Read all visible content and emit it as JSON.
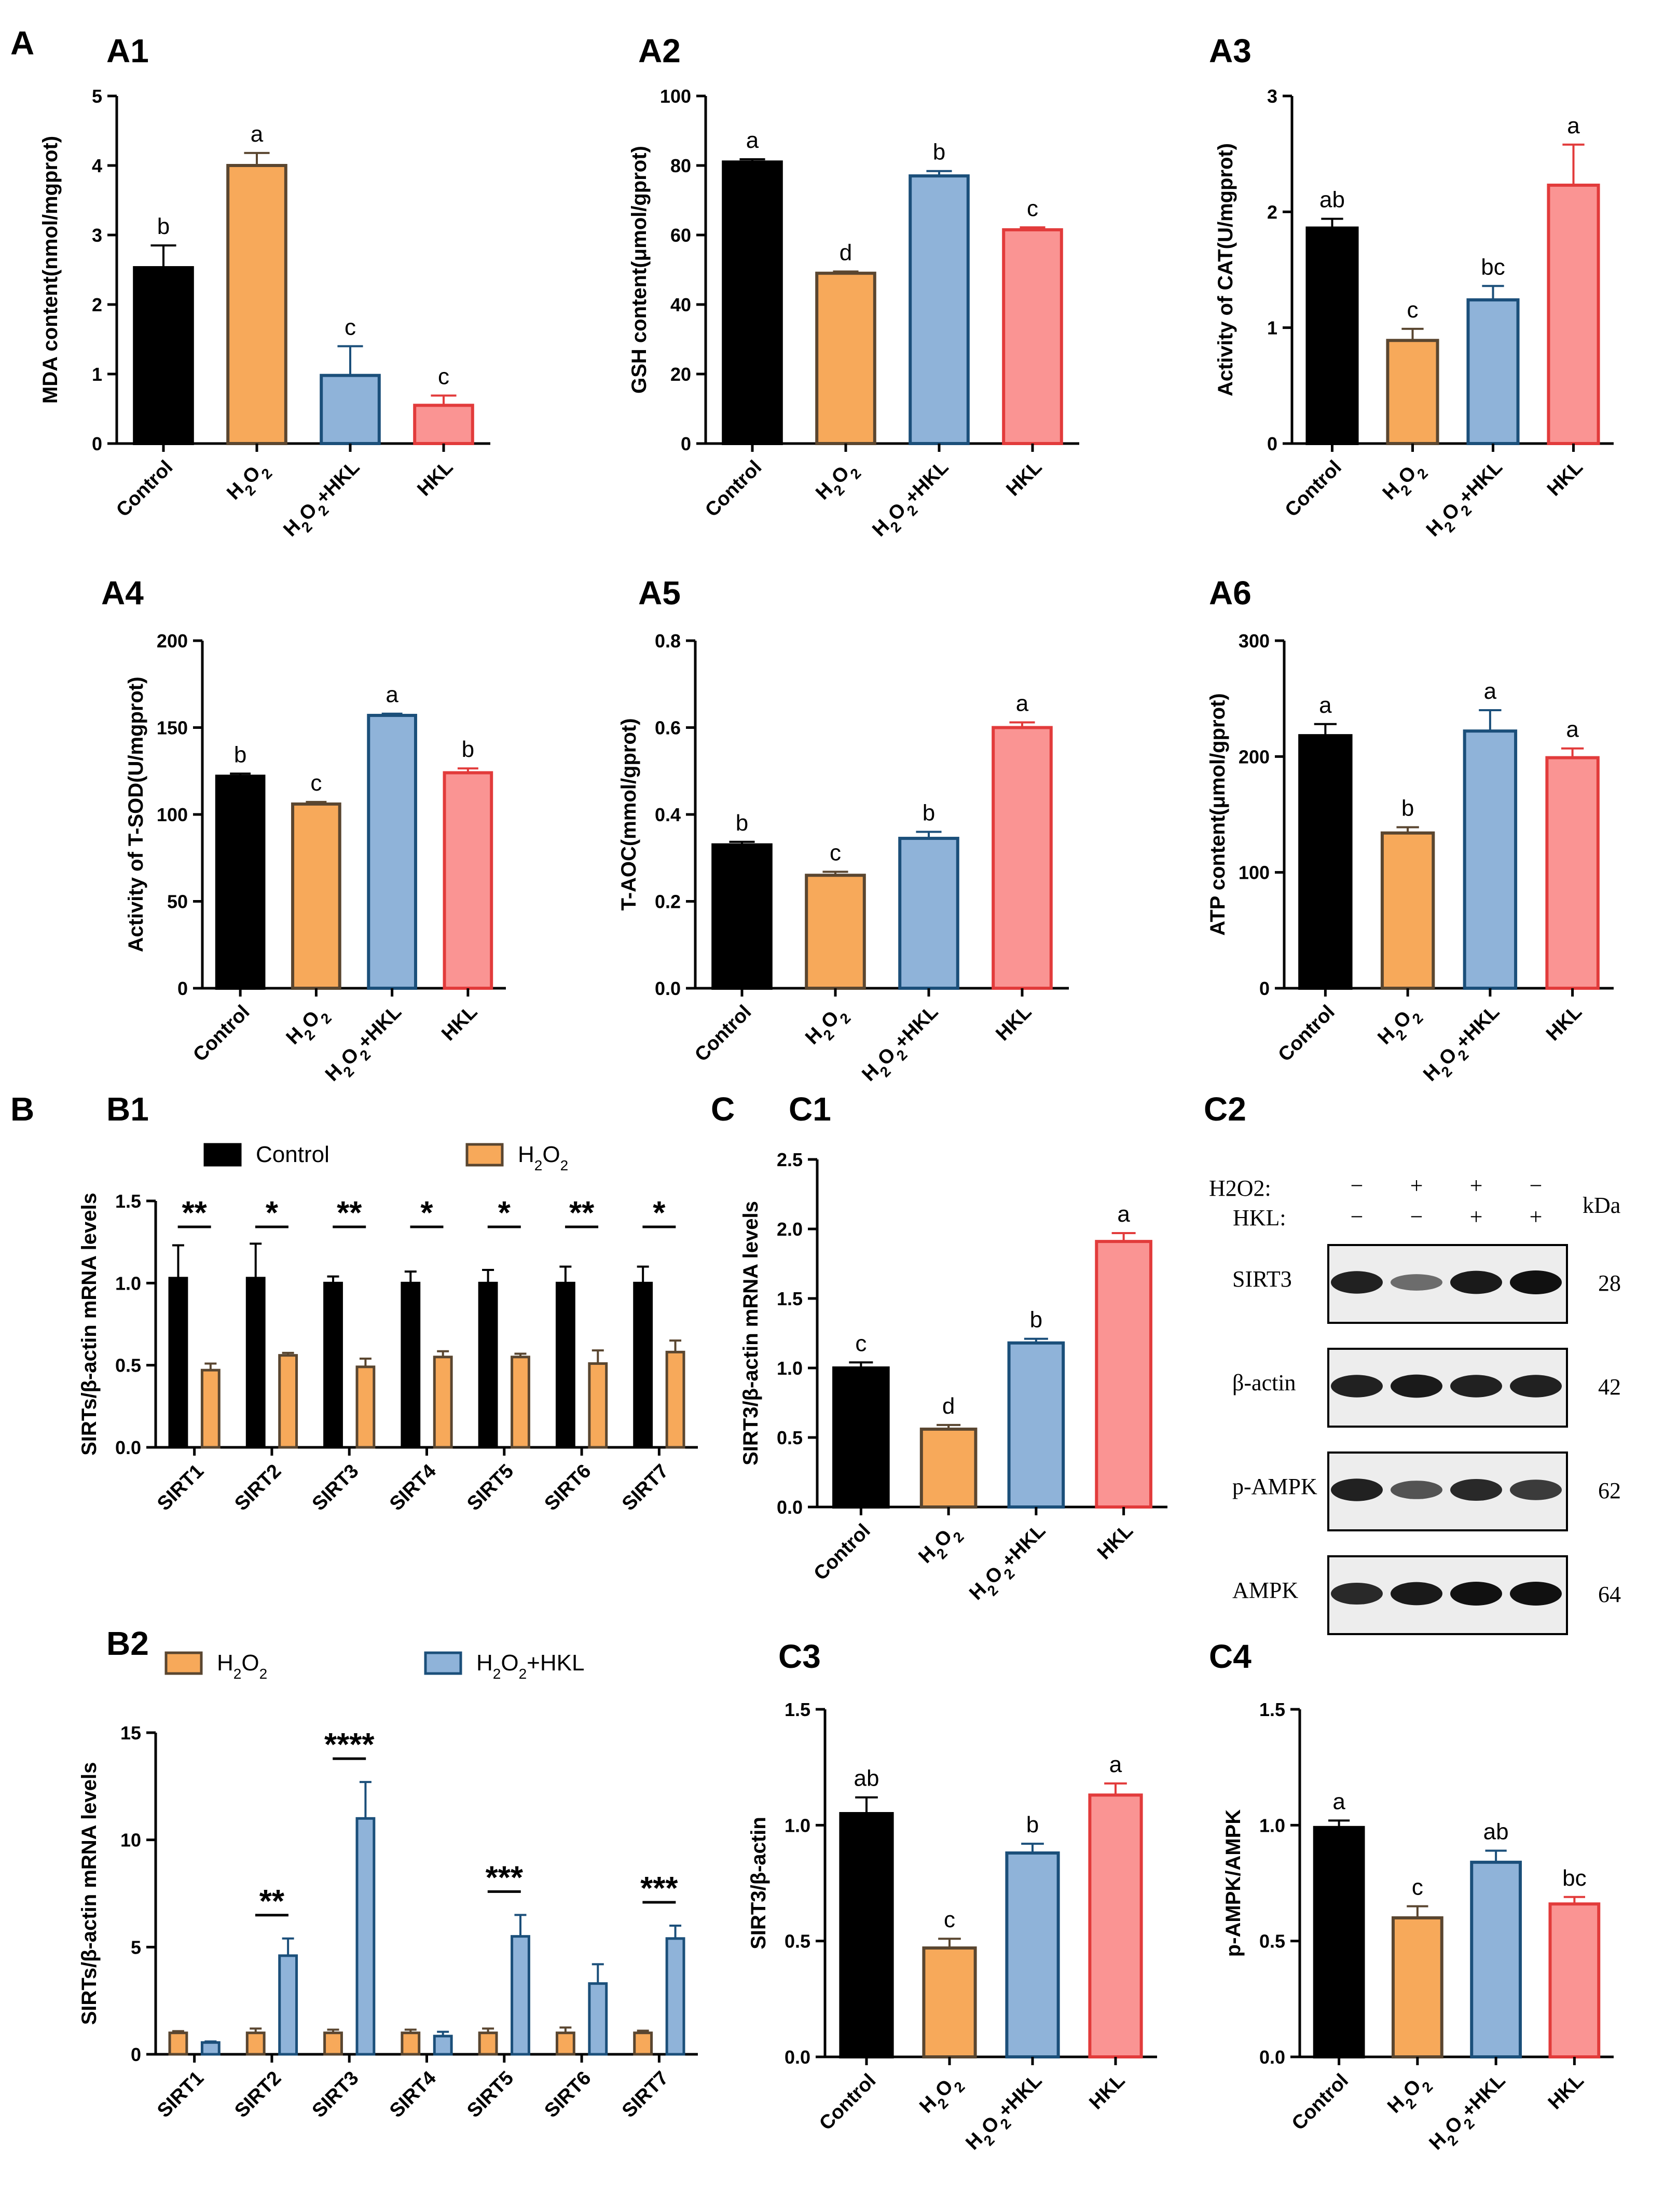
{
  "panel_labels": {
    "A": "A",
    "B": "B",
    "C": "C"
  },
  "colors": {
    "control_fill": "#000000",
    "h2o2_fill": "#F7A95A",
    "h2o2_edge": "#5A4630",
    "hkl_combo_fill": "#8FB3D9",
    "hkl_combo_edge": "#1B4F7A",
    "hkl_fill": "#FA9493",
    "hkl_edge": "#E23B3B"
  },
  "group_categories": [
    "Control",
    "H2O2",
    "H2O2+HKL",
    "HKL"
  ],
  "chart_data": [
    {
      "id": "A1",
      "title": "A1",
      "type": "bar",
      "ylabel": "MDA content(nmol/mgprot)",
      "ylim": [
        0,
        5
      ],
      "yticks": [
        0,
        1,
        2,
        3,
        4,
        5
      ],
      "categories": [
        "Control",
        "H2O2",
        "H2O2+HKL",
        "HKL"
      ],
      "values": [
        2.53,
        4.0,
        0.98,
        0.55
      ],
      "errors": [
        0.32,
        0.18,
        0.42,
        0.14
      ],
      "letters": [
        "b",
        "a",
        "c",
        "c"
      ]
    },
    {
      "id": "A2",
      "title": "A2",
      "type": "bar",
      "ylabel": "GSH content(μmol/gprot)",
      "ylim": [
        0,
        100
      ],
      "yticks": [
        0,
        20,
        40,
        60,
        80,
        100
      ],
      "categories": [
        "Control",
        "H2O2",
        "H2O2+HKL",
        "HKL"
      ],
      "values": [
        81,
        49,
        77,
        61.5
      ],
      "errors": [
        0.8,
        0.5,
        1.4,
        0.7
      ],
      "letters": [
        "a",
        "d",
        "b",
        "c"
      ]
    },
    {
      "id": "A3",
      "title": "A3",
      "type": "bar",
      "ylabel": "Activity of CAT(U/mgprot)",
      "ylim": [
        0,
        3
      ],
      "yticks": [
        0,
        1,
        2,
        3
      ],
      "categories": [
        "Control",
        "H2O2",
        "H2O2+HKL",
        "HKL"
      ],
      "values": [
        1.86,
        0.89,
        1.24,
        2.23
      ],
      "errors": [
        0.08,
        0.1,
        0.12,
        0.35
      ],
      "letters": [
        "ab",
        "c",
        "bc",
        "a"
      ]
    },
    {
      "id": "A4",
      "title": "A4",
      "type": "bar",
      "ylabel": "Activity of T-SOD(U/mgprot)",
      "ylim": [
        0,
        200
      ],
      "yticks": [
        0,
        50,
        100,
        150,
        200
      ],
      "categories": [
        "Control",
        "H2O2",
        "H2O2+HKL",
        "HKL"
      ],
      "values": [
        122,
        106,
        157,
        124
      ],
      "errors": [
        1.5,
        1.2,
        1.0,
        2.5
      ],
      "letters": [
        "b",
        "c",
        "a",
        "b"
      ]
    },
    {
      "id": "A5",
      "title": "A5",
      "type": "bar",
      "ylabel": "T-AOC(mmol/gprot)",
      "ylim": [
        0,
        0.8
      ],
      "yticks": [
        0.0,
        0.2,
        0.4,
        0.6,
        0.8
      ],
      "ytick_labels": [
        "0.0",
        "0.2",
        "0.4",
        "0.6",
        "0.8"
      ],
      "categories": [
        "Control",
        "H2O2",
        "H2O2+HKL",
        "HKL"
      ],
      "values": [
        0.33,
        0.26,
        0.345,
        0.6
      ],
      "errors": [
        0.007,
        0.008,
        0.015,
        0.012
      ],
      "letters": [
        "b",
        "c",
        "b",
        "a"
      ]
    },
    {
      "id": "A6",
      "title": "A6",
      "type": "bar",
      "ylabel": "ATP content(μmol/gprot)",
      "ylim": [
        0,
        300
      ],
      "yticks": [
        0,
        100,
        200,
        300
      ],
      "categories": [
        "Control",
        "H2O2",
        "H2O2+HKL",
        "HKL"
      ],
      "values": [
        218,
        134,
        222,
        199
      ],
      "errors": [
        10,
        5,
        18,
        8
      ],
      "letters": [
        "a",
        "b",
        "a",
        "a"
      ]
    },
    {
      "id": "B1",
      "title": "B1",
      "type": "bar",
      "ylabel": "SIRTs/β-actin mRNA levels",
      "ylim": [
        0,
        1.5
      ],
      "yticks": [
        0.0,
        0.5,
        1.0,
        1.5
      ],
      "ytick_labels": [
        "0.0",
        "0.5",
        "1.0",
        "1.5"
      ],
      "categories": [
        "SIRT1",
        "SIRT2",
        "SIRT3",
        "SIRT4",
        "SIRT5",
        "SIRT6",
        "SIRT7"
      ],
      "series": [
        {
          "name": "Control",
          "values": [
            1.03,
            1.03,
            1.0,
            1.0,
            1.0,
            1.0,
            1.0
          ],
          "errors": [
            0.2,
            0.21,
            0.04,
            0.07,
            0.08,
            0.1,
            0.1
          ]
        },
        {
          "name": "H2O2",
          "values": [
            0.47,
            0.56,
            0.49,
            0.55,
            0.55,
            0.51,
            0.58
          ],
          "errors": [
            0.04,
            0.015,
            0.05,
            0.035,
            0.02,
            0.08,
            0.07
          ]
        }
      ],
      "significance": [
        "**",
        "*",
        "**",
        "*",
        "*",
        "**",
        "*"
      ],
      "legend": [
        "Control",
        "H2O2"
      ]
    },
    {
      "id": "B2",
      "title": "B2",
      "type": "bar",
      "ylabel": "SIRTs/β-actin mRNA levels",
      "ylim": [
        0,
        15
      ],
      "yticks": [
        0,
        5,
        10,
        15
      ],
      "categories": [
        "SIRT1",
        "SIRT2",
        "SIRT3",
        "SIRT4",
        "SIRT5",
        "SIRT6",
        "SIRT7"
      ],
      "series": [
        {
          "name": "H2O2",
          "values": [
            1.0,
            1.0,
            1.0,
            1.0,
            1.0,
            1.0,
            1.0
          ],
          "errors": [
            0.08,
            0.2,
            0.15,
            0.15,
            0.2,
            0.25,
            0.1
          ]
        },
        {
          "name": "H2O2+HKL",
          "values": [
            0.55,
            4.6,
            11.0,
            0.85,
            5.5,
            3.3,
            5.4
          ],
          "errors": [
            0.05,
            0.8,
            1.7,
            0.2,
            1.0,
            0.9,
            0.6
          ]
        }
      ],
      "significance": [
        "",
        "**",
        "****",
        "",
        "***",
        "",
        "***"
      ],
      "legend": [
        "H2O2",
        "H2O2+HKL"
      ]
    },
    {
      "id": "C1",
      "title": "C1",
      "type": "bar",
      "ylabel": "SIRT3/β-actin mRNA levels",
      "ylim": [
        0,
        2.5
      ],
      "yticks": [
        0.0,
        0.5,
        1.0,
        1.5,
        2.0,
        2.5
      ],
      "ytick_labels": [
        "0.0",
        "0.5",
        "1.0",
        "1.5",
        "2.0",
        "2.5"
      ],
      "categories": [
        "Control",
        "H2O2",
        "H2O2+HKL",
        "HKL"
      ],
      "values": [
        1.0,
        0.56,
        1.18,
        1.91
      ],
      "errors": [
        0.04,
        0.03,
        0.03,
        0.06
      ],
      "letters": [
        "c",
        "d",
        "b",
        "a"
      ]
    },
    {
      "id": "C3",
      "title": "C3",
      "type": "bar",
      "ylabel": "SIRT3/β-actin",
      "ylim": [
        0,
        1.5
      ],
      "yticks": [
        0.0,
        0.5,
        1.0,
        1.5
      ],
      "ytick_labels": [
        "0.0",
        "0.5",
        "1.0",
        "1.5"
      ],
      "categories": [
        "Control",
        "H2O2",
        "H2O2+HKL",
        "HKL"
      ],
      "values": [
        1.05,
        0.47,
        0.88,
        1.13
      ],
      "errors": [
        0.07,
        0.04,
        0.04,
        0.05
      ],
      "letters": [
        "ab",
        "c",
        "b",
        "a"
      ]
    },
    {
      "id": "C4",
      "title": "C4",
      "type": "bar",
      "ylabel": "p-AMPK/AMPK",
      "ylim": [
        0,
        1.5
      ],
      "yticks": [
        0.0,
        0.5,
        1.0,
        1.5
      ],
      "ytick_labels": [
        "0.0",
        "0.5",
        "1.0",
        "1.5"
      ],
      "categories": [
        "Control",
        "H2O2",
        "H2O2+HKL",
        "HKL"
      ],
      "values": [
        0.99,
        0.6,
        0.84,
        0.66
      ],
      "errors": [
        0.03,
        0.05,
        0.05,
        0.03
      ],
      "letters": [
        "a",
        "c",
        "ab",
        "bc"
      ]
    }
  ],
  "western_blot": {
    "title": "C2",
    "h2o2_label": "H2O2:",
    "hkl_label": "HKL:",
    "kda_label": "kDa",
    "h2o2_signs": [
      "−",
      "+",
      "+",
      "−"
    ],
    "hkl_signs": [
      "−",
      "−",
      "+",
      "+"
    ],
    "bands": [
      {
        "name": "SIRT3",
        "kda": "28",
        "intensity": [
          0.9,
          0.45,
          0.95,
          1.0
        ]
      },
      {
        "name": "β-actin",
        "kda": "42",
        "intensity": [
          0.9,
          0.95,
          0.9,
          0.9
        ]
      },
      {
        "name": "p-AMPK",
        "kda": "62",
        "intensity": [
          0.9,
          0.6,
          0.85,
          0.75
        ]
      },
      {
        "name": "AMPK",
        "kda": "64",
        "intensity": [
          0.85,
          0.95,
          1.0,
          1.0
        ]
      }
    ]
  }
}
